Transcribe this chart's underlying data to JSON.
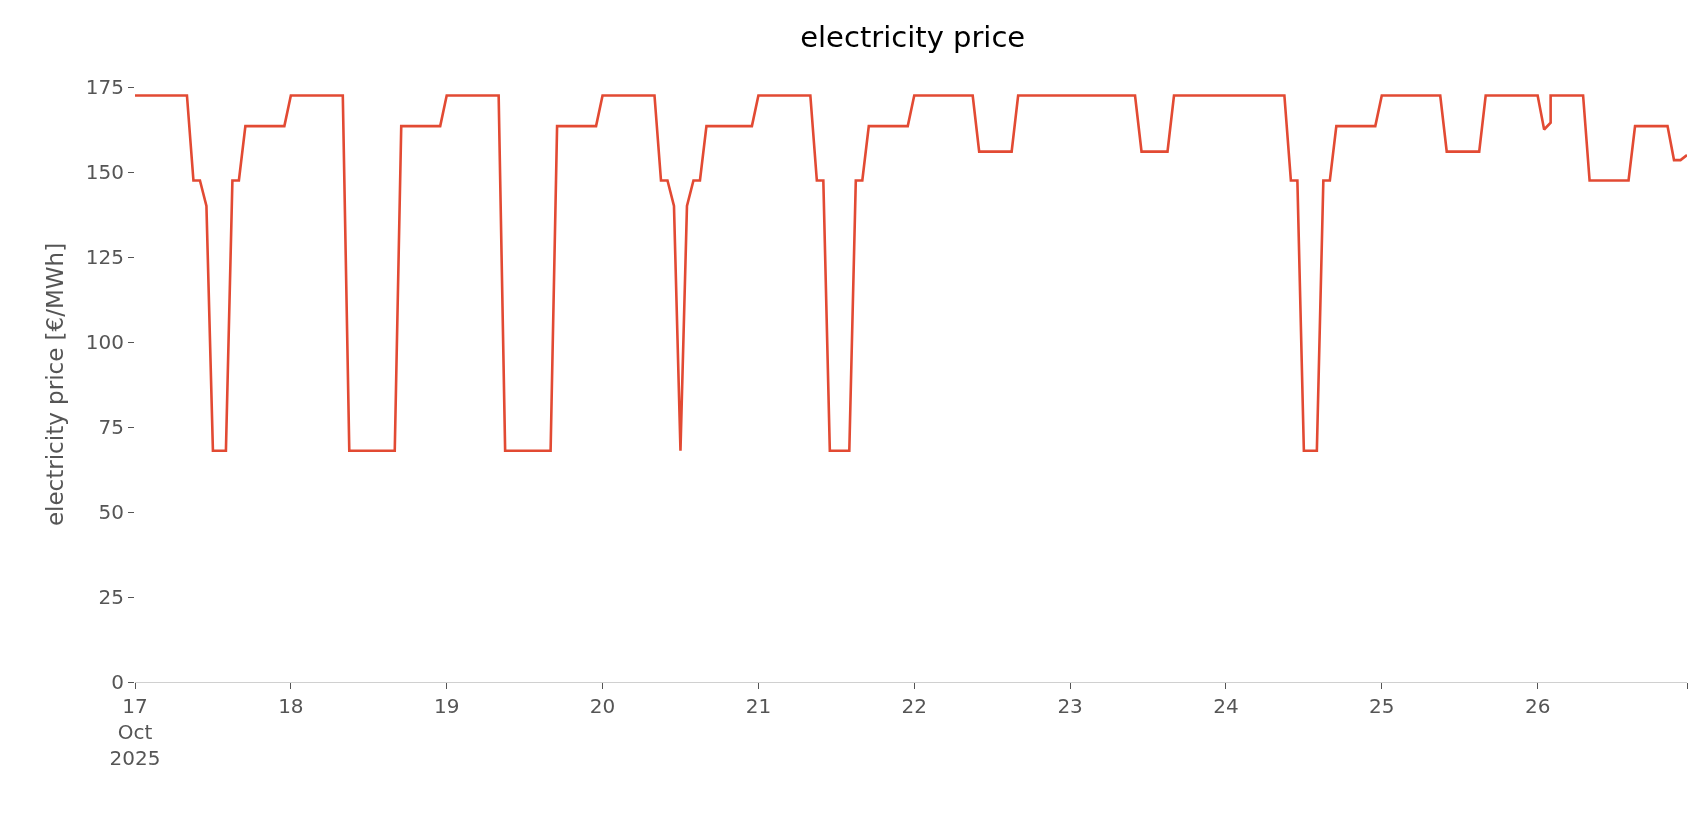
{
  "chart_data": {
    "type": "line",
    "title": "electricity price",
    "ylabel": "electricity price [€/MWh]",
    "x": [
      "2025-10-17T00:00",
      "2025-10-17T08:00",
      "2025-10-17T09:00",
      "2025-10-17T10:00",
      "2025-10-17T11:00",
      "2025-10-17T12:00",
      "2025-10-17T14:00",
      "2025-10-17T15:00",
      "2025-10-17T16:00",
      "2025-10-17T17:00",
      "2025-10-17T23:00",
      "2025-10-18T00:00",
      "2025-10-18T08:00",
      "2025-10-18T09:00",
      "2025-10-18T16:00",
      "2025-10-18T17:00",
      "2025-10-18T23:00",
      "2025-10-19T00:00",
      "2025-10-19T08:00",
      "2025-10-19T09:00",
      "2025-10-19T16:00",
      "2025-10-19T17:00",
      "2025-10-19T23:00",
      "2025-10-20T00:00",
      "2025-10-20T08:00",
      "2025-10-20T09:00",
      "2025-10-20T10:00",
      "2025-10-20T11:00",
      "2025-10-20T12:00",
      "2025-10-20T13:00",
      "2025-10-20T14:00",
      "2025-10-20T15:00",
      "2025-10-20T16:00",
      "2025-10-20T23:00",
      "2025-10-21T00:00",
      "2025-10-21T08:00",
      "2025-10-21T09:00",
      "2025-10-21T10:00",
      "2025-10-21T11:00",
      "2025-10-21T14:00",
      "2025-10-21T15:00",
      "2025-10-21T16:00",
      "2025-10-21T17:00",
      "2025-10-21T23:00",
      "2025-10-22T00:00",
      "2025-10-22T09:00",
      "2025-10-22T10:00",
      "2025-10-22T15:00",
      "2025-10-22T16:00",
      "2025-10-23T10:00",
      "2025-10-23T11:00",
      "2025-10-23T15:00",
      "2025-10-23T16:00",
      "2025-10-24T09:00",
      "2025-10-24T10:00",
      "2025-10-24T11:00",
      "2025-10-24T12:00",
      "2025-10-24T14:00",
      "2025-10-24T15:00",
      "2025-10-24T16:00",
      "2025-10-24T17:00",
      "2025-10-24T23:00",
      "2025-10-25T00:00",
      "2025-10-25T09:00",
      "2025-10-25T10:00",
      "2025-10-25T15:00",
      "2025-10-25T16:00",
      "2025-10-26T00:00",
      "2025-10-26T01:00",
      "2025-10-26T02:00",
      "2025-10-26T02:00",
      "2025-10-26T07:00",
      "2025-10-26T08:00",
      "2025-10-26T14:00",
      "2025-10-26T15:00",
      "2025-10-26T20:00",
      "2025-10-26T21:00",
      "2025-10-26T22:00",
      "2025-10-26T23:00"
    ],
    "series": [
      {
        "color": "#e24a33",
        "values": [
          172.5,
          172.5,
          147.5,
          147.5,
          140,
          68,
          68,
          147.5,
          147.5,
          163.5,
          163.5,
          172.5,
          172.5,
          68,
          68,
          163.5,
          163.5,
          172.5,
          172.5,
          68,
          68,
          163.5,
          163.5,
          172.5,
          172.5,
          147.5,
          147.5,
          140,
          68,
          140,
          147.5,
          147.5,
          163.5,
          163.5,
          172.5,
          172.5,
          147.5,
          147.5,
          68,
          68,
          147.5,
          147.5,
          163.5,
          163.5,
          172.5,
          172.5,
          156,
          156,
          172.5,
          172.5,
          156,
          156,
          172.5,
          172.5,
          147.5,
          147.5,
          68,
          68,
          147.5,
          147.5,
          163.5,
          163.5,
          172.5,
          172.5,
          156,
          156,
          172.5,
          172.5,
          162.5,
          164.5,
          172.5,
          172.5,
          147.5,
          147.5,
          163.5,
          163.5,
          153.5,
          153.5,
          155
        ]
      }
    ],
    "xlim": [
      "2025-10-17T00:00",
      "2025-10-26T23:00"
    ],
    "xticks": [
      {
        "value": "2025-10-17",
        "label": "17\nOct\n2025"
      },
      {
        "value": "2025-10-18",
        "label": "18"
      },
      {
        "value": "2025-10-19",
        "label": "19"
      },
      {
        "value": "2025-10-20",
        "label": "20"
      },
      {
        "value": "2025-10-21",
        "label": "21"
      },
      {
        "value": "2025-10-22",
        "label": "22"
      },
      {
        "value": "2025-10-23",
        "label": "23"
      },
      {
        "value": "2025-10-24",
        "label": "24"
      },
      {
        "value": "2025-10-25",
        "label": "25"
      },
      {
        "value": "2025-10-26",
        "label": "26"
      },
      {
        "value": "2025-10-26T23:00",
        "label": null
      }
    ],
    "ylim": [
      0,
      175
    ],
    "yticks": [
      0,
      25,
      50,
      75,
      100,
      125,
      150,
      175
    ],
    "grid": false,
    "marker": "none",
    "line_style": "solid"
  }
}
